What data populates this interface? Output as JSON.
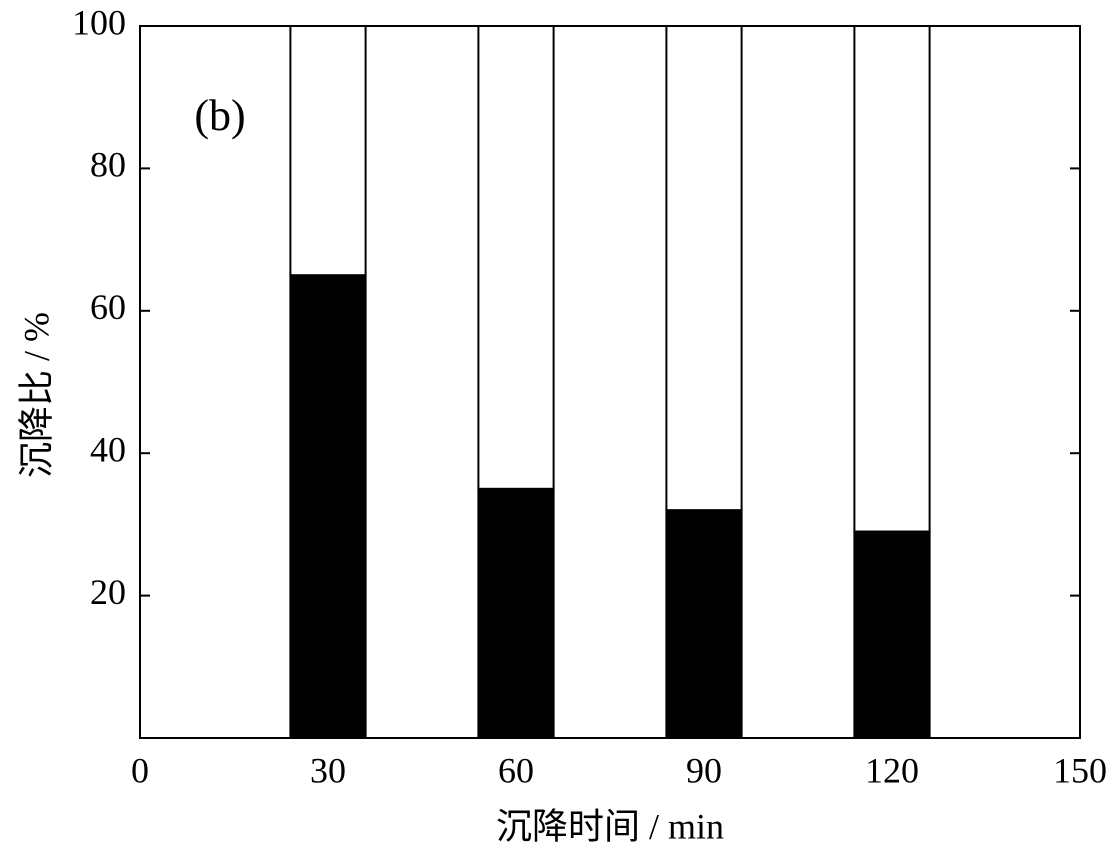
{
  "chart_data": {
    "type": "stacked-bar",
    "annotation": "(b)",
    "x_label": "沉降时间  / min",
    "y_label": "沉降比 / %",
    "x": [
      30,
      60,
      90,
      120
    ],
    "bar_width": 12,
    "series": [
      {
        "color": "#000000",
        "values": [
          65,
          35,
          32,
          29
        ]
      },
      {
        "color": "#ffffff",
        "values": [
          35,
          65,
          68,
          71
        ]
      }
    ],
    "xlim": [
      0,
      150
    ],
    "xticks": [
      0,
      30,
      60,
      90,
      120,
      150
    ],
    "ylim": [
      0,
      100
    ],
    "yticks": [
      20,
      40,
      60,
      80,
      100
    ],
    "grid": false
  }
}
